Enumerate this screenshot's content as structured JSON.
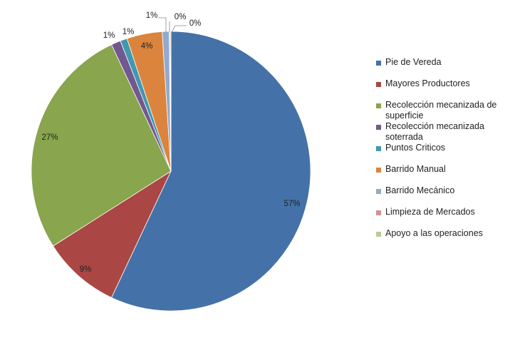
{
  "chart_data": {
    "type": "pie",
    "title": "",
    "slices": [
      {
        "label": "Pie de Vereda",
        "value": 57,
        "display": "57%",
        "color": "#4472A8"
      },
      {
        "label": "Mayores Productores",
        "value": 9,
        "display": "9%",
        "color": "#AA4643"
      },
      {
        "label": "Recolección mecanizada de superficie",
        "value": 27,
        "display": "27%",
        "color": "#89A54E"
      },
      {
        "label": "Recolección mecanizada soterrada",
        "value": 1.1,
        "display": "1%",
        "color": "#71588F"
      },
      {
        "label": "Puntos Criticos",
        "value": 0.8,
        "display": "1%",
        "color": "#4198AF"
      },
      {
        "label": "Barrido Manual",
        "value": 4.1,
        "display": "4%",
        "color": "#DB843D"
      },
      {
        "label": "Barrido Mecánico",
        "value": 0.8,
        "display": "1%",
        "color": "#93A9CF"
      },
      {
        "label": "Limpieza de Mercados",
        "value": 0.1,
        "display": "0%",
        "color": "#D19392"
      },
      {
        "label": "Apoyo a las operaciones",
        "value": 0.1,
        "display": "0%",
        "color": "#B9CD96"
      }
    ],
    "legend_position": "right",
    "start_angle": "12 o'clock",
    "direction": "clockwise"
  }
}
